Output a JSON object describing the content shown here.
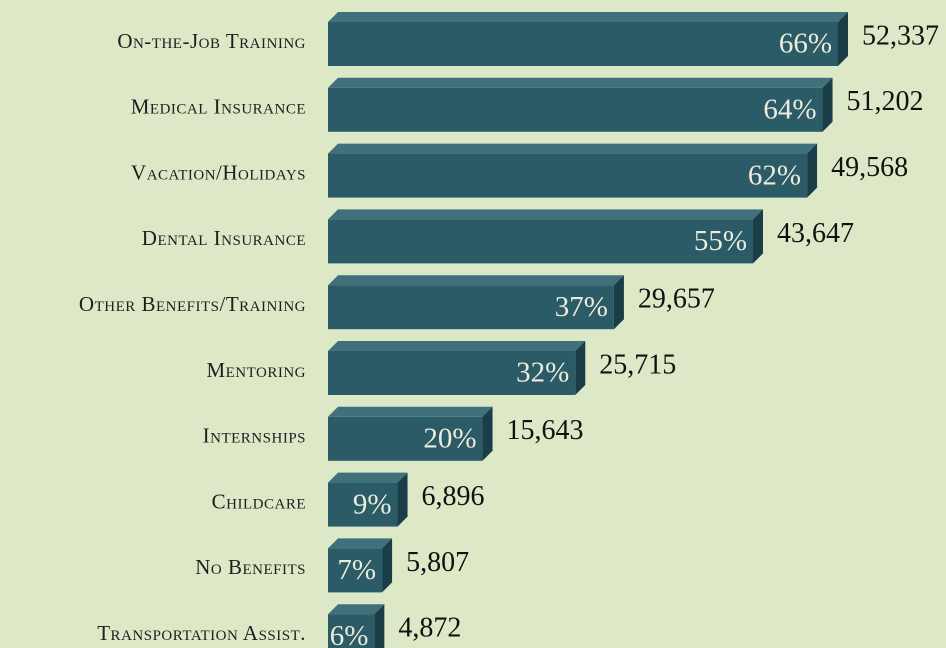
{
  "chart_data": {
    "type": "bar",
    "categories": [
      "On-the-Job Training",
      "Medical Insurance",
      "Vacation/Holidays",
      "Dental Insurance",
      "Other Benefits/Training",
      "Mentoring",
      "Internships",
      "Childcare",
      "No Benefits",
      "Transportation Assist."
    ],
    "values": [
      66,
      64,
      62,
      55,
      37,
      32,
      20,
      9,
      7,
      6
    ],
    "value_labels": [
      "66%",
      "64%",
      "62%",
      "55%",
      "37%",
      "32%",
      "20%",
      "9%",
      "7%",
      "6%"
    ],
    "counts": [
      52337,
      51202,
      49568,
      43647,
      29657,
      25715,
      15643,
      6896,
      5807,
      4872
    ],
    "count_labels": [
      "52,337",
      "51,202",
      "49,568",
      "43,647",
      "29,657",
      "25,715",
      "15,643",
      "6,896",
      "5,807",
      "4,872"
    ],
    "color": "#2b5b67"
  }
}
